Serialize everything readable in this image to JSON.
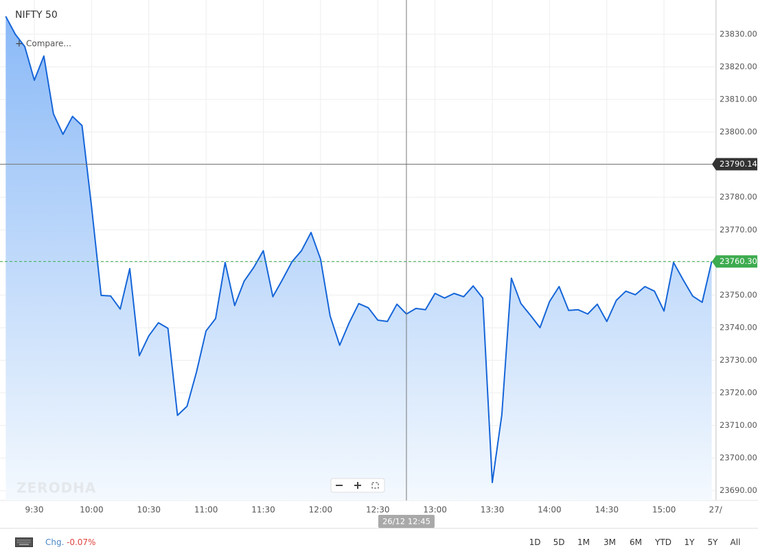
{
  "chart_data": {
    "type": "area",
    "title": "NIFTY 50",
    "compare": "Compare...",
    "watermark": "ZERODHA",
    "color": "#1565d8",
    "x": [
      555,
      560,
      565,
      570,
      575,
      580,
      585,
      590,
      595,
      600,
      605,
      610,
      615,
      620,
      625,
      630,
      635,
      640,
      645,
      650,
      655,
      660,
      665,
      670,
      675,
      680,
      685,
      690,
      695,
      700,
      705,
      710,
      715,
      720,
      725,
      730,
      735,
      740,
      745,
      750,
      755,
      760,
      765,
      770,
      775,
      780,
      785,
      790,
      795,
      800,
      805,
      810,
      815,
      820,
      825,
      830,
      835,
      840,
      845,
      850,
      855,
      860,
      865,
      870,
      875,
      880,
      885,
      890,
      895,
      900,
      905,
      910,
      915,
      920,
      925
    ],
    "values": [
      23835.5,
      23830,
      23826.2,
      23815.9,
      23823.3,
      23805.6,
      23799.3,
      23804.8,
      23802,
      23777,
      23749.9,
      23749.7,
      23745.7,
      23758.1,
      23731.4,
      23737.5,
      23741.5,
      23739.8,
      23713.1,
      23715.9,
      23726.4,
      23739,
      23742.8,
      23760,
      23746.8,
      23754.3,
      23758.5,
      23763.6,
      23749.5,
      23754.7,
      23760.2,
      23763.6,
      23769.2,
      23761,
      23743.6,
      23734.6,
      23741.5,
      23747.4,
      23746.1,
      23742.3,
      23741.9,
      23747.2,
      23744.2,
      23745.9,
      23745.5,
      23750.5,
      23749.1,
      23750.5,
      23749.5,
      23752.8,
      23749.1,
      23692.5,
      23713.3,
      23755.2,
      23747.4,
      23743.8,
      23740,
      23748,
      23752.6,
      23745.3,
      23745.5,
      23744.2,
      23747.2,
      23741.9,
      23748.4,
      23751.2,
      23750.1,
      23752.6,
      23751.2,
      23745.1,
      23760,
      23754.7,
      23749.7,
      23747.8,
      23760.3
    ],
    "xlim": [
      552,
      927.3
    ],
    "xticks": [
      {
        "value": 570,
        "label": "9:30"
      },
      {
        "value": 600,
        "label": "10:00"
      },
      {
        "value": 630,
        "label": "10:30"
      },
      {
        "value": 660,
        "label": "11:00"
      },
      {
        "value": 690,
        "label": "11:30"
      },
      {
        "value": 720,
        "label": "12:00"
      },
      {
        "value": 750,
        "label": "12:30"
      },
      {
        "value": 780,
        "label": "13:00"
      },
      {
        "value": 810,
        "label": "13:30"
      },
      {
        "value": 840,
        "label": "14:00"
      },
      {
        "value": 870,
        "label": "14:30"
      },
      {
        "value": 900,
        "label": "15:00"
      },
      {
        "value": 927,
        "label": "27/"
      }
    ],
    "ylim": [
      23687,
      23840.5
    ],
    "yticks": [
      {
        "value": 23690,
        "label": "23690.00"
      },
      {
        "value": 23700,
        "label": "23700.00"
      },
      {
        "value": 23710,
        "label": "23710.00"
      },
      {
        "value": 23720,
        "label": "23720.00"
      },
      {
        "value": 23730,
        "label": "23730.00"
      },
      {
        "value": 23740,
        "label": "23740.00"
      },
      {
        "value": 23750,
        "label": "23750.00"
      },
      {
        "value": 23760,
        "label": "23760.00"
      },
      {
        "value": 23770,
        "label": "23770.00"
      },
      {
        "value": 23780,
        "label": "23780.00"
      },
      {
        "value": 23790,
        "label": "23790.00"
      },
      {
        "value": 23800,
        "label": "23800.00"
      },
      {
        "value": 23810,
        "label": "23810.00"
      },
      {
        "value": 23820,
        "label": "23820.00"
      },
      {
        "value": 23830,
        "label": "23830.00"
      }
    ],
    "grid": true,
    "last_price": {
      "value": 23760.3,
      "label": "23760.30",
      "color": "#3dab4f"
    },
    "crosshair": {
      "x": 765,
      "x_label": "26/12 12:45",
      "y": 23790.14
    }
  },
  "change": {
    "label": "Chg.",
    "value": "-0.07%"
  },
  "ranges": [
    "1D",
    "5D",
    "1M",
    "3M",
    "6M",
    "YTD",
    "1Y",
    "5Y",
    "All"
  ]
}
